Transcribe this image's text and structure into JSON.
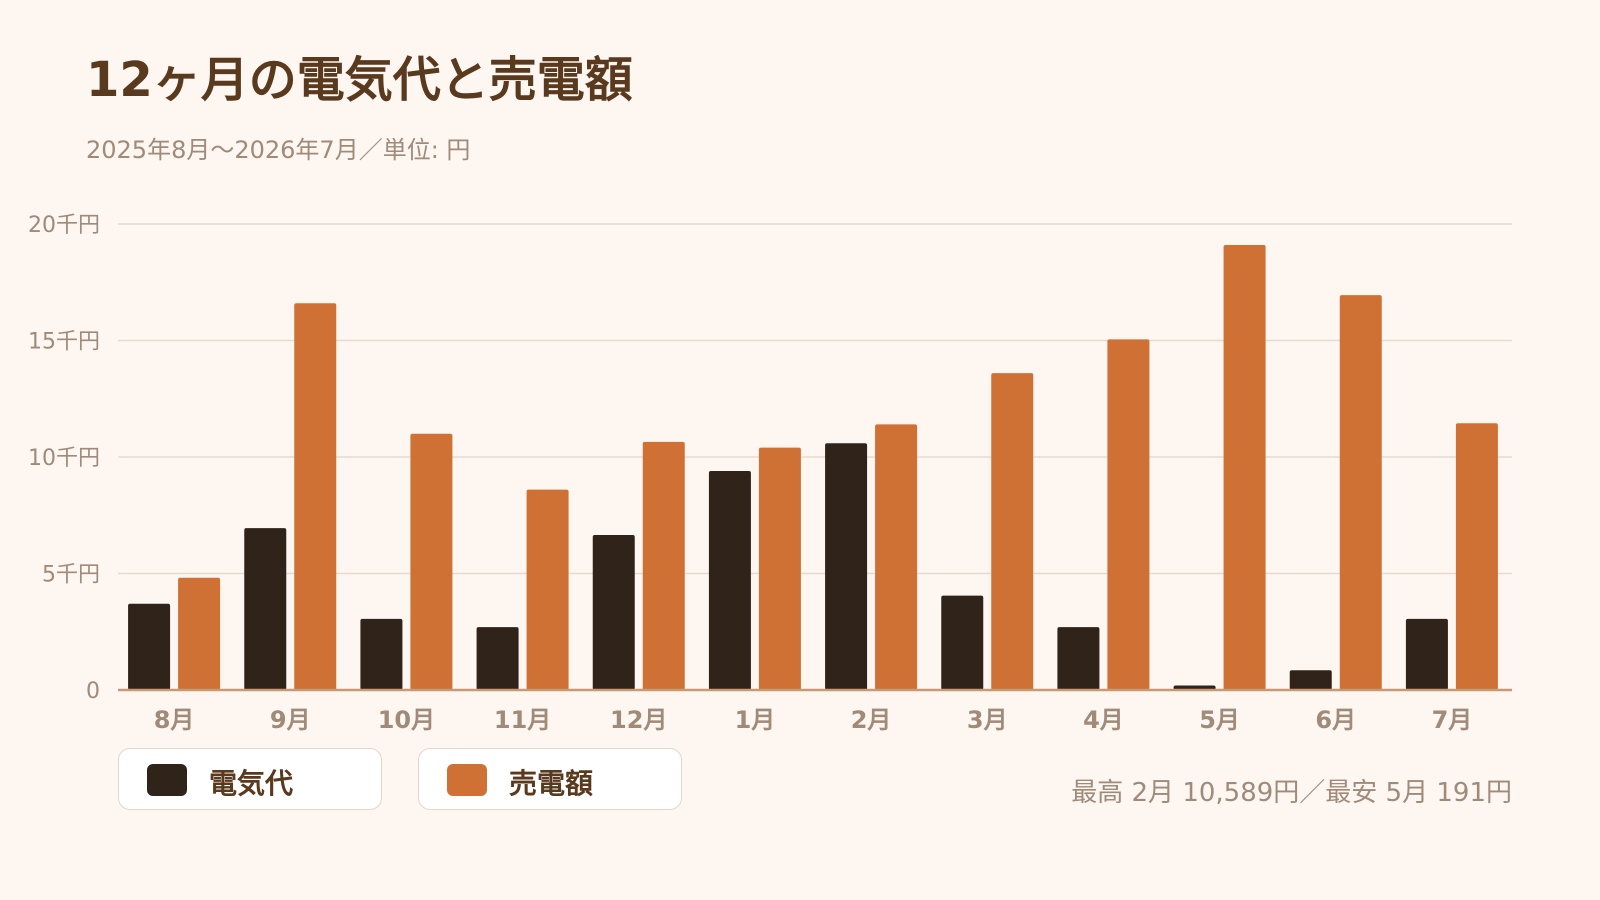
{
  "chart_data": {
    "type": "bar",
    "title": "12ヶ月の電気代と売電額",
    "subtitle": "2025年8月〜2026年7月／単位: 円",
    "categories": [
      "8月",
      "9月",
      "10月",
      "11月",
      "12月",
      "1月",
      "2月",
      "3月",
      "4月",
      "5月",
      "6月",
      "7月"
    ],
    "series": [
      {
        "name": "電気代",
        "color": "#30231a",
        "values": [
          3700,
          6950,
          3050,
          2700,
          6650,
          9400,
          10589,
          4050,
          2700,
          191,
          850,
          3050
        ]
      },
      {
        "name": "売電額",
        "color": "#cf7134",
        "values": [
          4820,
          16600,
          11000,
          8600,
          10650,
          10400,
          11400,
          13600,
          15050,
          19100,
          16950,
          11450
        ]
      }
    ],
    "yticks": [
      {
        "value": 0,
        "label": "0"
      },
      {
        "value": 5000,
        "label": "5千円"
      },
      {
        "value": 10000,
        "label": "10千円"
      },
      {
        "value": 15000,
        "label": "15千円"
      },
      {
        "value": 20000,
        "label": "20千円"
      }
    ],
    "ylim": [
      0,
      20000
    ],
    "grid": true,
    "legend_position": "bottom-left"
  },
  "summary": "最高 2月 10,589円／最安 5月 191円"
}
